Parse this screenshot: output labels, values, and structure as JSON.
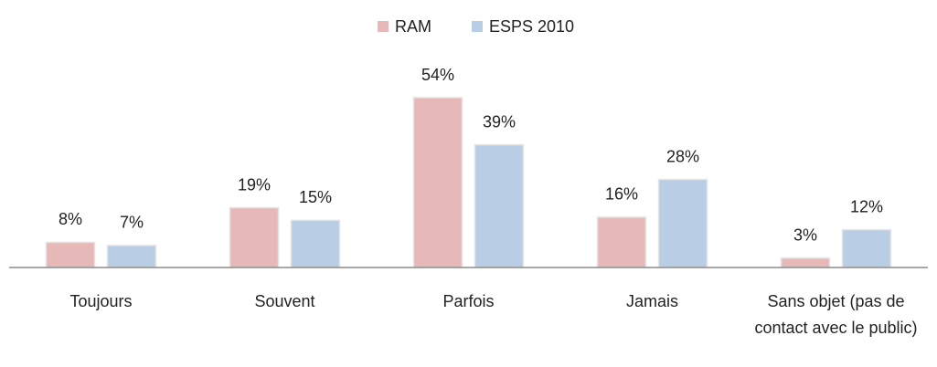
{
  "chart_data": {
    "type": "bar",
    "categories": [
      "Toujours",
      "Souvent",
      "Parfois",
      "Jamais",
      "Sans objet (pas de contact avec le public)"
    ],
    "series": [
      {
        "name": "RAM",
        "color": "#e6b9b8",
        "values": [
          8,
          19,
          54,
          16,
          3
        ],
        "value_labels": [
          "8%",
          "19%",
          "54%",
          "16%",
          "3%"
        ]
      },
      {
        "name": "ESPS 2010",
        "color": "#b9cde5",
        "values": [
          7,
          15,
          39,
          28,
          12
        ],
        "value_labels": [
          "7%",
          "15%",
          "39%",
          "28%",
          "12%"
        ]
      }
    ],
    "legend": "top"
  }
}
